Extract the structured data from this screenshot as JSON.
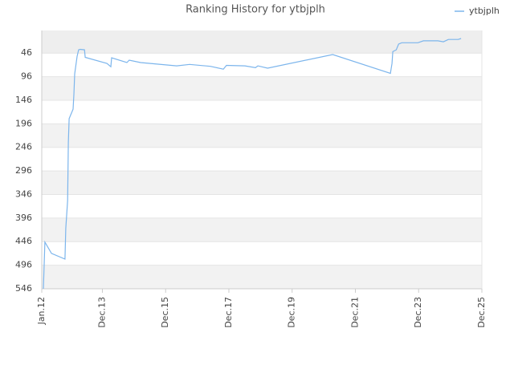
{
  "chart_data": {
    "type": "line",
    "title": "Ranking History for ytbjplh",
    "x": [
      0.6,
      0.9,
      1.2,
      3.7,
      8.8,
      9.1,
      9.8,
      10.1,
      10.4,
      11.9,
      12.2,
      12.5,
      13.4,
      14.0,
      14.6,
      16.2,
      16.5,
      24.7,
      26.2,
      26.5,
      32.3,
      33.2,
      37.5,
      51.2,
      56.1,
      64.0,
      68.9,
      70.1,
      77.1,
      81.1,
      82.0,
      85.7,
      110.4,
      132.3,
      132.9,
      133.2,
      134.5,
      135.4,
      136.6,
      142.7,
      144.8,
      150.3,
      152.4,
      154.3,
      158.0,
      159.1
    ],
    "series": [
      {
        "name": "ytbjplh",
        "color": "#7cb5ec",
        "values": [
          546,
          495,
          447,
          471,
          483,
          418,
          359,
          236,
          185,
          165,
          134,
          90,
          53,
          39,
          38,
          39,
          55,
          68,
          75,
          56,
          66,
          61,
          66,
          73,
          70,
          74,
          80,
          72,
          73,
          77,
          73,
          78,
          49,
          89,
          68,
          43,
          39,
          27,
          24,
          24,
          20,
          20,
          22,
          17,
          17,
          15
        ]
      }
    ],
    "xlim": [
      0,
      167
    ],
    "xticks": [
      {
        "value": 0,
        "label": "Jan.12"
      },
      {
        "value": 23,
        "label": "Dec.13"
      },
      {
        "value": 47,
        "label": "Dec.15"
      },
      {
        "value": 71,
        "label": "Dec.17"
      },
      {
        "value": 95,
        "label": "Dec.19"
      },
      {
        "value": 119,
        "label": "Dec.21"
      },
      {
        "value": 143,
        "label": "Dec.23"
      },
      {
        "value": 167,
        "label": "Dec.25"
      }
    ],
    "ylim": [
      546,
      -2
    ],
    "yticks": [
      46,
      96,
      146,
      196,
      246,
      296,
      346,
      396,
      446,
      496,
      546
    ],
    "grid": true,
    "legend": "top-right"
  }
}
